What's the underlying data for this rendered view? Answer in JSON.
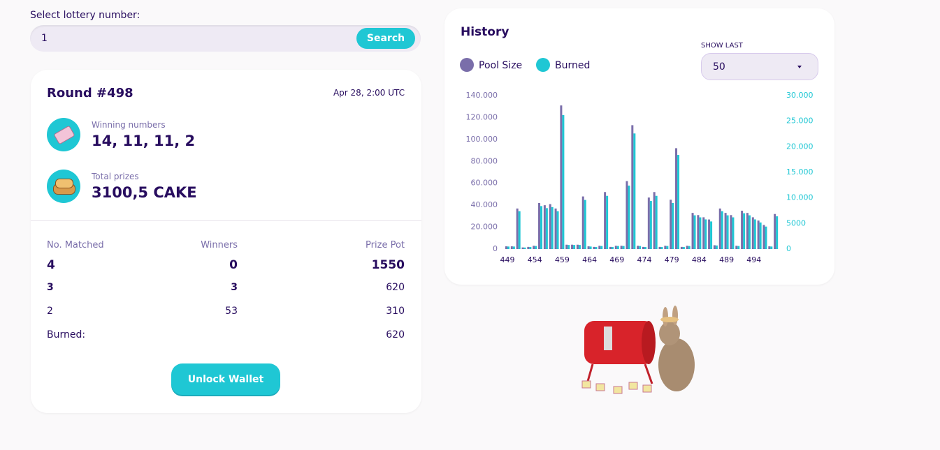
{
  "search": {
    "label": "Select lottery number:",
    "value": "1",
    "button": "Search"
  },
  "round": {
    "title": "Round #498",
    "date": "Apr 28, 2:00 UTC",
    "winning_label": "Winning numbers",
    "winning_numbers": "14, 11, 11, 2",
    "prizes_label": "Total prizes",
    "prizes_value": "3100,5 CAKE",
    "table": {
      "header": [
        "No. Matched",
        "Winners",
        "Prize Pot"
      ],
      "rows": [
        [
          "4",
          "0",
          "1550"
        ],
        [
          "3",
          "3",
          "620"
        ],
        [
          "2",
          "53",
          "310"
        ]
      ],
      "burned": [
        "Burned:",
        "620"
      ]
    },
    "button": "Unlock Wallet"
  },
  "history": {
    "title": "History",
    "show_last_label": "SHOW LAST",
    "show_last_value": "50"
  },
  "chart_data": {
    "type": "bar",
    "categories": [
      449,
      null,
      null,
      null,
      null,
      454,
      null,
      null,
      null,
      null,
      459,
      null,
      null,
      null,
      null,
      464,
      null,
      null,
      null,
      null,
      469,
      null,
      null,
      null,
      null,
      474,
      null,
      null,
      null,
      null,
      479,
      null,
      null,
      null,
      null,
      484,
      null,
      null,
      null,
      null,
      489,
      null,
      null,
      null,
      null,
      494,
      null,
      null,
      null,
      null
    ],
    "series": [
      {
        "name": "Pool Size",
        "color": "#7a6eaa",
        "values": [
          2500,
          2500,
          37000,
          1500,
          2000,
          3000,
          42000,
          40000,
          41000,
          37000,
          131000,
          4000,
          4000,
          4000,
          48000,
          2500,
          2000,
          3000,
          52000,
          2000,
          3000,
          3000,
          62000,
          113000,
          3000,
          2000,
          47000,
          52000,
          2000,
          3000,
          45000,
          92000,
          2000,
          3000,
          33000,
          31000,
          29000,
          27000,
          3500,
          37000,
          33000,
          31000,
          3000,
          35000,
          33000,
          29000,
          26000,
          22000,
          2500,
          32000
        ]
      },
      {
        "name": "Burned",
        "color": "#1fc7d4",
        "axis": "y2",
        "values": [
          500,
          500,
          7400,
          300,
          400,
          600,
          8400,
          8000,
          8200,
          7400,
          26200,
          800,
          800,
          800,
          9600,
          500,
          400,
          600,
          10400,
          400,
          600,
          600,
          12400,
          22600,
          600,
          400,
          9400,
          10400,
          400,
          600,
          9000,
          18400,
          400,
          600,
          6600,
          6200,
          5800,
          5400,
          700,
          7400,
          6600,
          6200,
          600,
          7000,
          6600,
          5800,
          5200,
          4400,
          500,
          6400
        ]
      }
    ],
    "ylim": [
      0,
      140000
    ],
    "yticks": [
      0,
      {
        "value": 20000,
        "label": "20.000"
      },
      {
        "value": 40000,
        "label": "40.000"
      },
      {
        "value": 60000,
        "label": "60.000"
      },
      {
        "value": 80000,
        "label": "80.000"
      },
      {
        "value": 100000,
        "label": "100.000"
      },
      {
        "value": 120000,
        "label": "120.000"
      },
      {
        "value": 140000,
        "label": "140.000"
      }
    ],
    "y2lim": [
      0,
      30000
    ],
    "y2ticks": [
      0,
      5000,
      {
        "value": 10000,
        "label": "10.000"
      },
      {
        "value": 15000,
        "label": "15.000"
      },
      {
        "value": 20000,
        "label": "20.000"
      },
      {
        "value": 25000,
        "label": "25.000"
      },
      {
        "value": 30000,
        "label": "30.000"
      }
    ],
    "grid": false
  }
}
